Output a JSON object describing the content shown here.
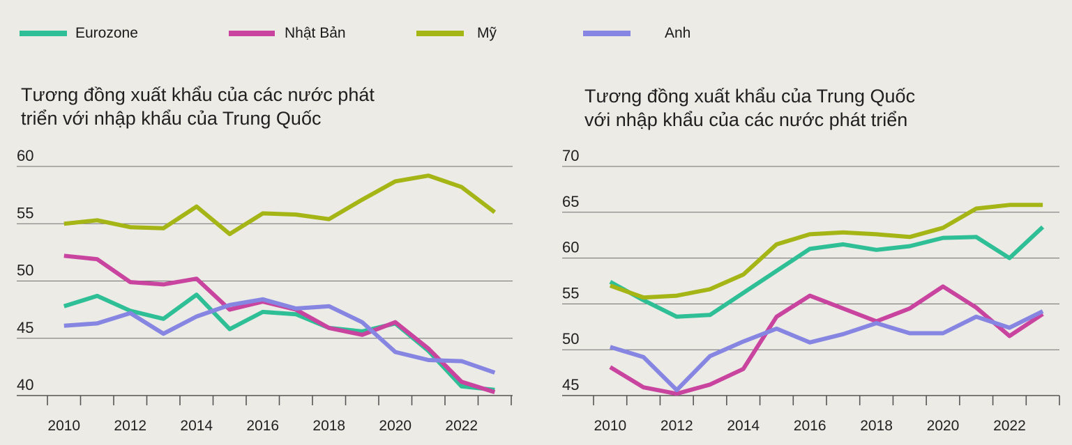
{
  "legend": [
    {
      "label": "Eurozone",
      "color": "#2fbf96"
    },
    {
      "label": "Nhật Bản",
      "color": "#c8449e"
    },
    {
      "label": "Mỹ",
      "color": "#a4b515"
    },
    {
      "label": "Anh",
      "color": "#8686e2"
    }
  ],
  "chart_data": [
    {
      "type": "line",
      "title": "Tương đồng xuất khẩu của các nước phát triển với nhập khẩu của Trung Quốc",
      "title_lines": [
        "Tương đồng xuất khẩu của các nước phát",
        "triển với nhập khẩu của Trung Quốc"
      ],
      "xlabel": "",
      "ylabel": "",
      "x": [
        2010,
        2011,
        2012,
        2013,
        2014,
        2015,
        2016,
        2017,
        2018,
        2019,
        2020,
        2021,
        2022,
        2023
      ],
      "xticks": [
        "2010",
        "2012",
        "2014",
        "2016",
        "2018",
        "2020",
        "2022"
      ],
      "ylim": [
        40,
        60
      ],
      "yticks": [
        "40",
        "45",
        "50",
        "55",
        "60"
      ],
      "grid": true,
      "series": [
        {
          "name": "Eurozone",
          "color": "#2fbf96",
          "values": [
            47.8,
            48.7,
            47.4,
            46.7,
            48.8,
            45.8,
            47.3,
            47.1,
            45.9,
            45.6,
            46.3,
            43.9,
            40.8,
            40.5
          ]
        },
        {
          "name": "Nhật Bản",
          "color": "#c8449e",
          "values": [
            52.2,
            51.9,
            49.9,
            49.7,
            50.2,
            47.5,
            48.2,
            47.5,
            45.9,
            45.3,
            46.4,
            44.1,
            41.2,
            40.3
          ]
        },
        {
          "name": "Mỹ",
          "color": "#a4b515",
          "values": [
            55.0,
            55.3,
            54.7,
            54.6,
            56.5,
            54.1,
            55.9,
            55.8,
            55.4,
            57.1,
            58.7,
            59.2,
            58.2,
            56.0
          ]
        },
        {
          "name": "Anh",
          "color": "#8686e2",
          "values": [
            46.1,
            46.3,
            47.2,
            45.4,
            46.9,
            47.9,
            48.4,
            47.6,
            47.8,
            46.4,
            43.8,
            43.1,
            43.0,
            42.0
          ]
        }
      ]
    },
    {
      "type": "line",
      "title": "Tương đồng xuất khẩu của Trung Quốc với nhập khẩu của các nước phát triển",
      "title_lines": [
        "Tương đồng xuất khẩu của Trung Quốc",
        "với nhập khẩu của các nước phát triển"
      ],
      "xlabel": "",
      "ylabel": "",
      "x": [
        2010,
        2011,
        2012,
        2013,
        2014,
        2015,
        2016,
        2017,
        2018,
        2019,
        2020,
        2021,
        2022,
        2023
      ],
      "xticks": [
        "2010",
        "2012",
        "2014",
        "2016",
        "2018",
        "2020",
        "2022"
      ],
      "ylim": [
        45,
        70
      ],
      "yticks": [
        "45",
        "50",
        "55",
        "60",
        "65",
        "70"
      ],
      "grid": true,
      "series": [
        {
          "name": "Eurozone",
          "color": "#2fbf96",
          "values": [
            57.4,
            55.4,
            53.6,
            53.8,
            56.2,
            58.6,
            61.0,
            61.5,
            60.9,
            61.3,
            62.2,
            62.3,
            60.0,
            63.4
          ]
        },
        {
          "name": "Nhật Bản",
          "color": "#c8449e",
          "values": [
            48.1,
            45.9,
            45.2,
            46.2,
            47.9,
            53.6,
            55.9,
            54.5,
            53.1,
            54.5,
            56.9,
            54.6,
            51.5,
            53.9
          ]
        },
        {
          "name": "Mỹ",
          "color": "#a4b515",
          "values": [
            57.0,
            55.7,
            55.9,
            56.6,
            58.2,
            61.5,
            62.6,
            62.8,
            62.6,
            62.3,
            63.3,
            65.4,
            65.8,
            65.8
          ]
        },
        {
          "name": "Anh",
          "color": "#8686e2",
          "values": [
            50.3,
            49.2,
            45.6,
            49.3,
            50.9,
            52.3,
            50.8,
            51.7,
            52.9,
            51.8,
            51.8,
            53.6,
            52.4,
            54.2
          ]
        }
      ]
    }
  ]
}
